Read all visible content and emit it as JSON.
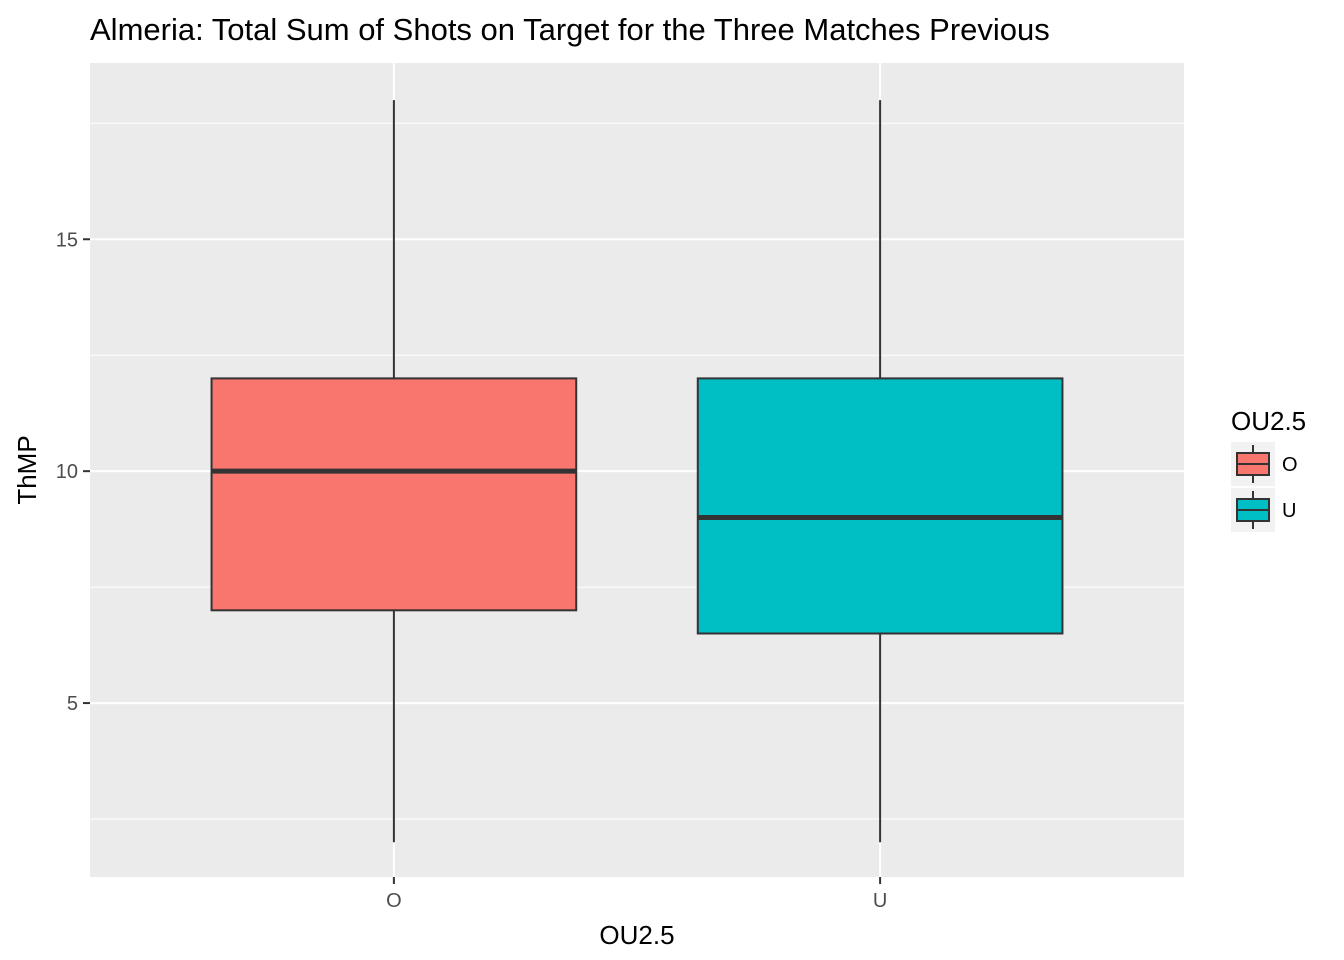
{
  "chart_data": {
    "type": "boxplot",
    "title": "Almeria: Total Sum of Shots on Target for the Three Matches Previous",
    "xlabel": "OU2.5",
    "ylabel": "ThMP",
    "categories": [
      "O",
      "U"
    ],
    "series": [
      {
        "name": "O",
        "color": "#F8766D",
        "min": 2,
        "q1": 7,
        "median": 10,
        "q3": 12,
        "max": 18
      },
      {
        "name": "U",
        "color": "#00BFC4",
        "min": 2,
        "q1": 6.5,
        "median": 9,
        "q3": 12,
        "max": 18
      }
    ],
    "ylim": [
      1.25,
      18.8
    ],
    "yticks": [
      5,
      10,
      15
    ],
    "yminor": [
      2.5,
      7.5,
      12.5,
      17.5
    ],
    "panel_background": "#EBEBEB",
    "grid": true,
    "legend": {
      "title": "OU2.5",
      "position": "right",
      "entries": [
        "O",
        "U"
      ]
    }
  }
}
